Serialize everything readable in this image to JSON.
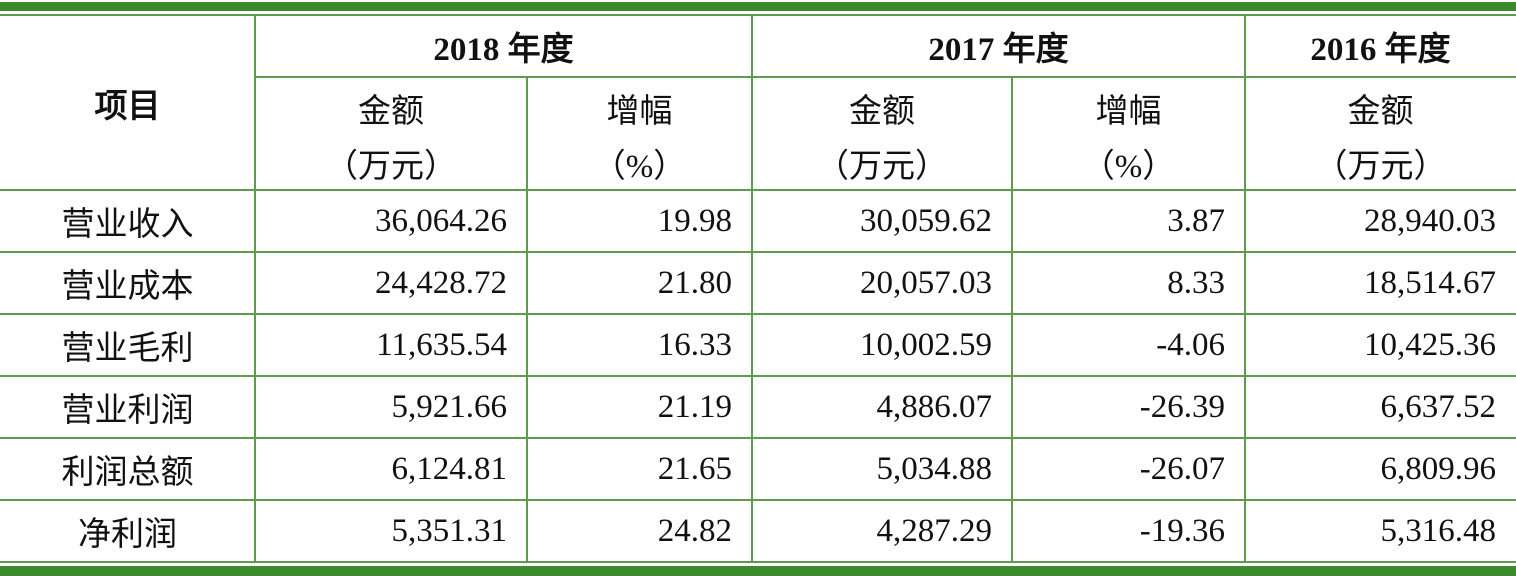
{
  "table": {
    "header": {
      "item": "项目",
      "years": [
        "2018 年度",
        "2017 年度",
        "2016 年度"
      ],
      "columns": [
        {
          "name": "金额",
          "unit": "（万元）"
        },
        {
          "name": "增幅",
          "unit": "（%）"
        },
        {
          "name": "金额",
          "unit": "（万元）"
        },
        {
          "name": "增幅",
          "unit": "（%）"
        },
        {
          "name": "金额",
          "unit": "（万元）"
        }
      ]
    },
    "rows": [
      {
        "label": "营业收入",
        "values": [
          "36,064.26",
          "19.98",
          "30,059.62",
          "3.87",
          "28,940.03"
        ]
      },
      {
        "label": "营业成本",
        "values": [
          "24,428.72",
          "21.80",
          "20,057.03",
          "8.33",
          "18,514.67"
        ]
      },
      {
        "label": "营业毛利",
        "values": [
          "11,635.54",
          "16.33",
          "10,002.59",
          "-4.06",
          "10,425.36"
        ]
      },
      {
        "label": "营业利润",
        "values": [
          "5,921.66",
          "21.19",
          "4,886.07",
          "-26.39",
          "6,637.52"
        ]
      },
      {
        "label": "利润总额",
        "values": [
          "6,124.81",
          "21.65",
          "5,034.88",
          "-26.07",
          "6,809.96"
        ]
      },
      {
        "label": "净利润",
        "values": [
          "5,351.31",
          "24.82",
          "4,287.29",
          "-19.36",
          "5,316.48"
        ]
      }
    ]
  }
}
